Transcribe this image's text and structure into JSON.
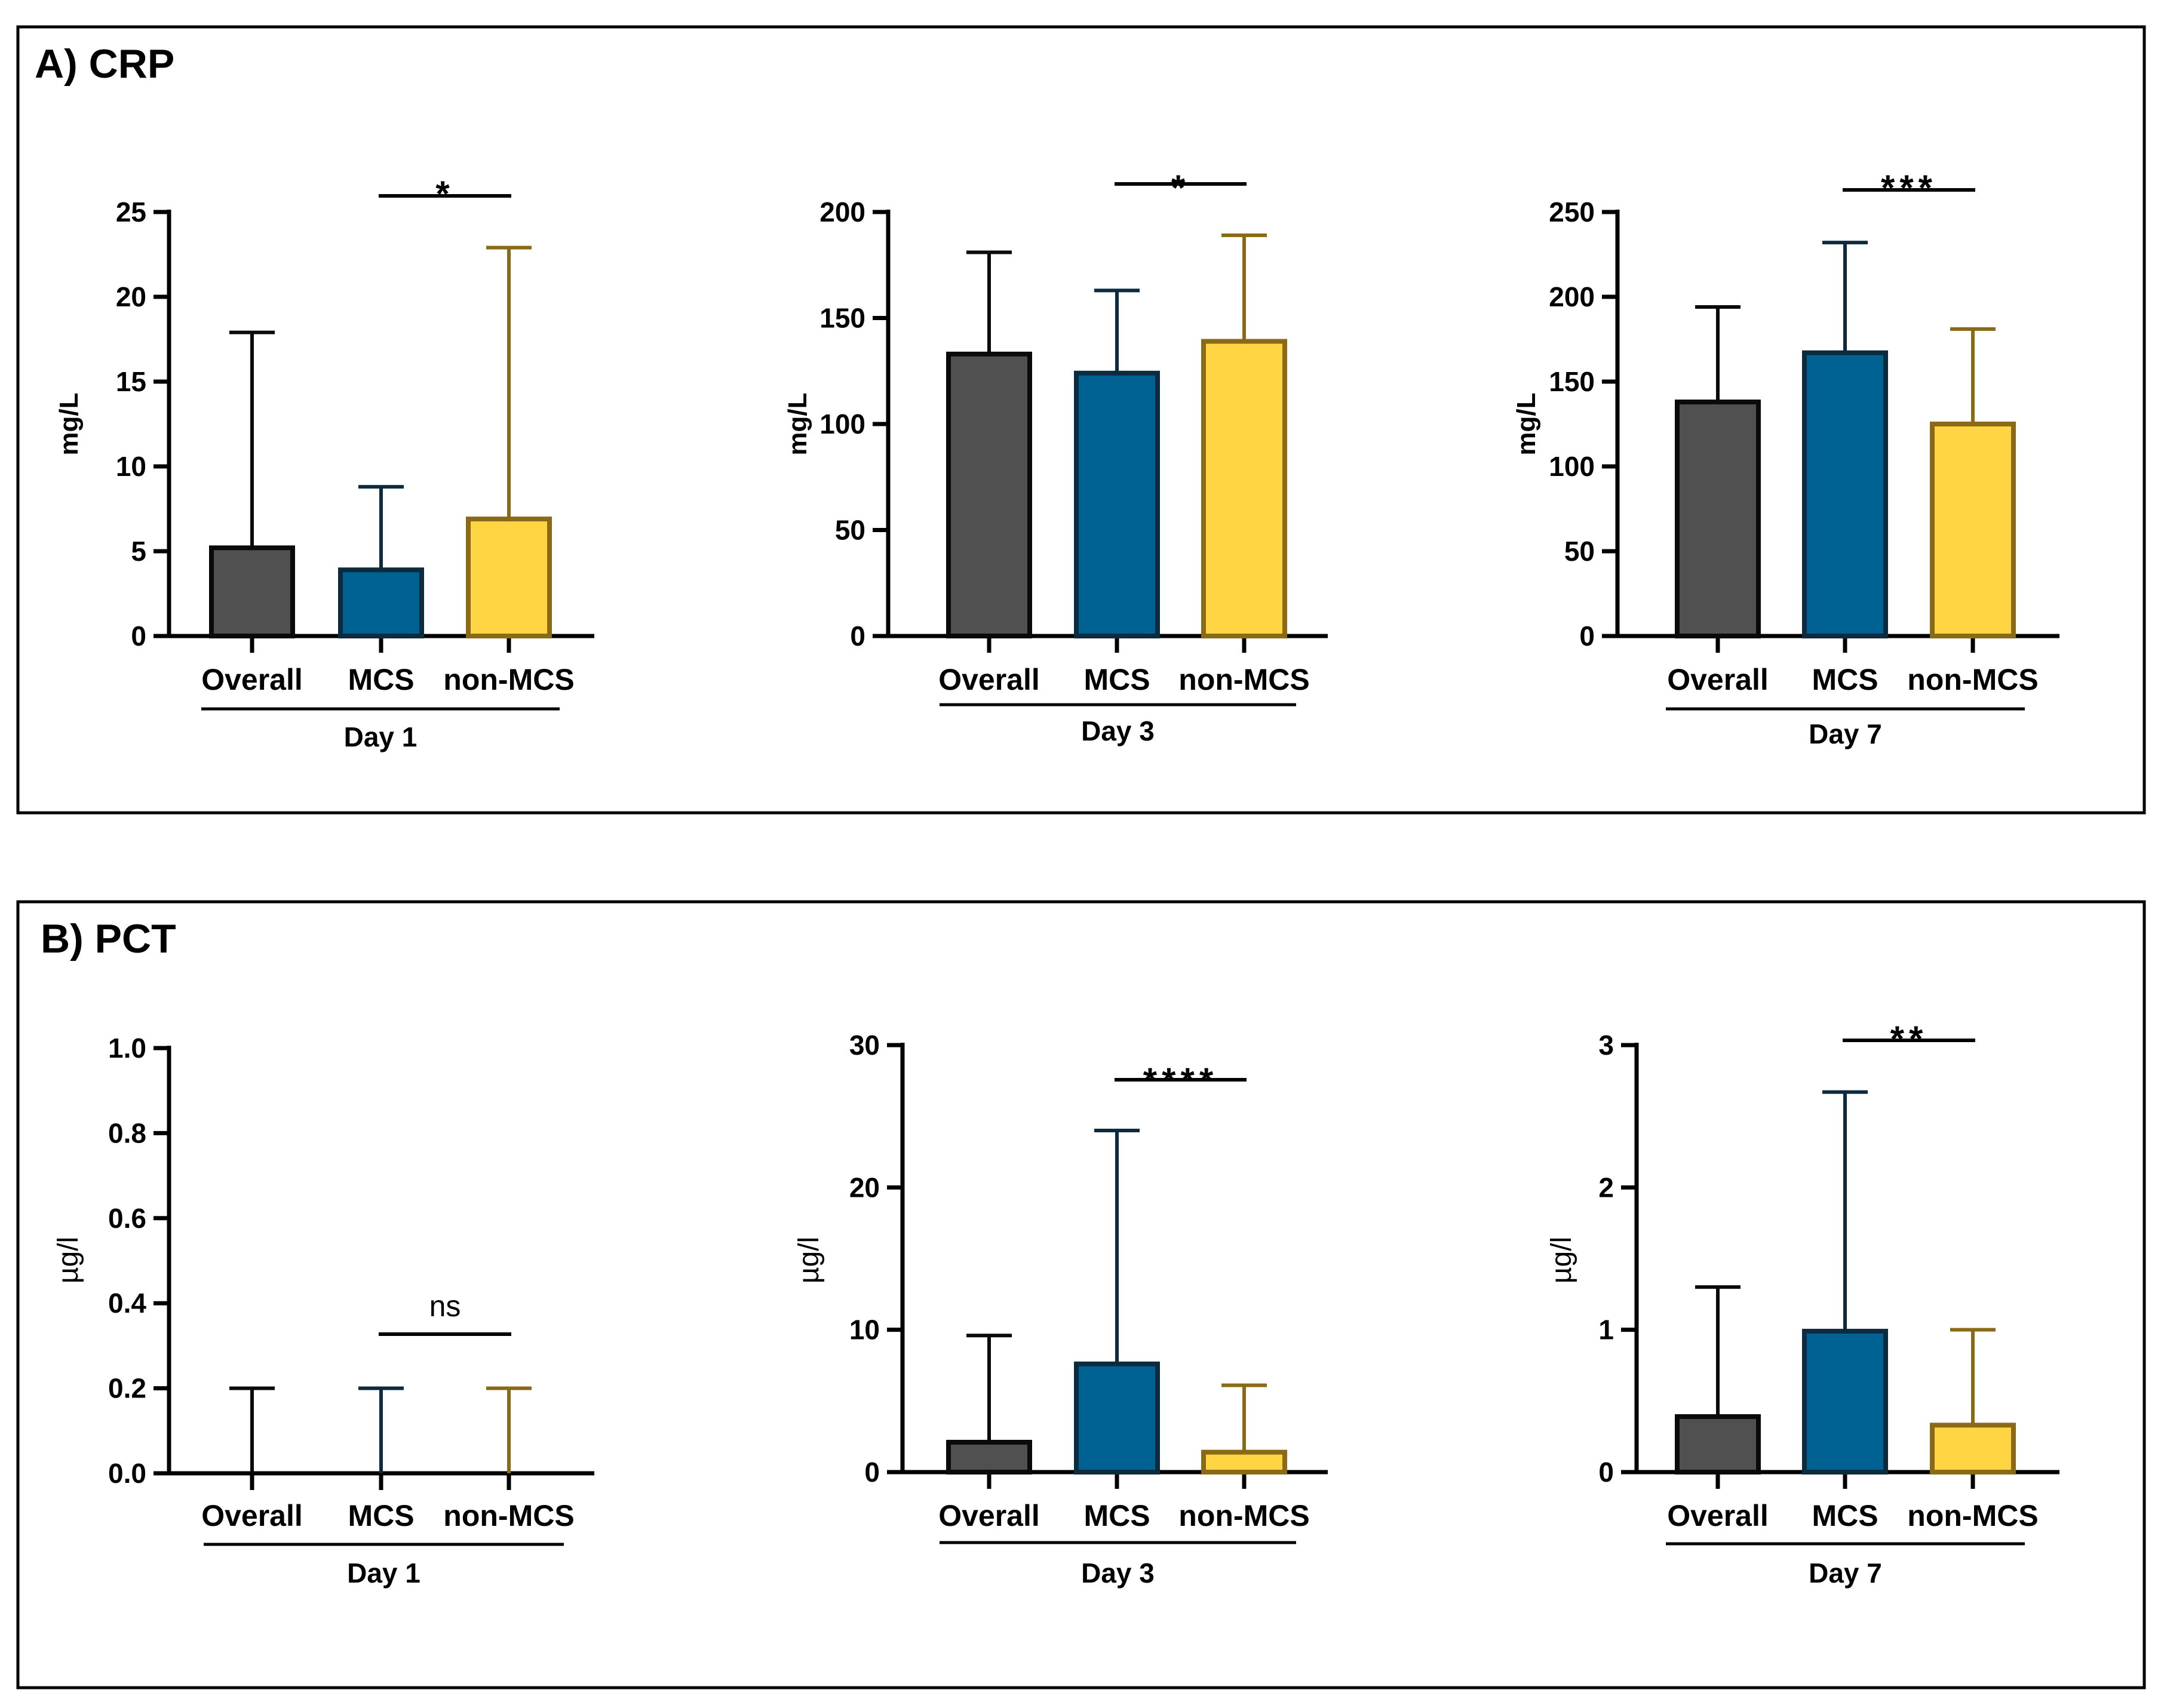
{
  "panels": [
    {
      "id": "A",
      "title": "A) CRP"
    },
    {
      "id": "B",
      "title": "B) PCT"
    }
  ],
  "colors": {
    "overall_fill": "#505050",
    "overall_stroke": "#0a0a0a",
    "mcs_fill": "#006193",
    "mcs_stroke": "#0d2b3e",
    "nonmcs_fill": "#ffd544",
    "nonmcs_stroke": "#8a6a17"
  },
  "chart_data": [
    {
      "type": "bar",
      "panel": "A",
      "ylabel": "mg/L",
      "ylim": [
        0,
        25
      ],
      "yticks": [
        0,
        5,
        10,
        15,
        20,
        25
      ],
      "categories": [
        "Overall",
        "MCS",
        "non-MCS"
      ],
      "group_label": "Day 1",
      "values": [
        5.2,
        3.9,
        6.9
      ],
      "error_upper": [
        17.9,
        8.8,
        22.9
      ],
      "significance": {
        "label": "*",
        "between": [
          "MCS",
          "non-MCS"
        ]
      }
    },
    {
      "type": "bar",
      "panel": "A",
      "ylabel": "mg/L",
      "ylim": [
        0,
        200
      ],
      "yticks": [
        0,
        50,
        100,
        150,
        200
      ],
      "categories": [
        "Overall",
        "MCS",
        "non-MCS"
      ],
      "group_label": "Day 3",
      "values": [
        133,
        124,
        139
      ],
      "error_upper": [
        181,
        163,
        189
      ],
      "significance": {
        "label": "*",
        "between": [
          "MCS",
          "non-MCS"
        ]
      }
    },
    {
      "type": "bar",
      "panel": "A",
      "ylabel": "mg/L",
      "ylim": [
        0,
        250
      ],
      "yticks": [
        0,
        50,
        100,
        150,
        200,
        250
      ],
      "categories": [
        "Overall",
        "MCS",
        "non-MCS"
      ],
      "group_label": "Day 7",
      "values": [
        138,
        167,
        125
      ],
      "error_upper": [
        194,
        232,
        181
      ],
      "significance": {
        "label": "***",
        "between": [
          "MCS",
          "non-MCS"
        ]
      }
    },
    {
      "type": "bar",
      "panel": "B",
      "ylabel": "µg/l",
      "ylim": [
        0,
        1.0
      ],
      "yticks": [
        "0.0",
        "0.2",
        "0.4",
        "0.6",
        "0.8",
        "1.0"
      ],
      "categories": [
        "Overall",
        "MCS",
        "non-MCS"
      ],
      "group_label": "Day 1",
      "values": [
        0,
        0,
        0
      ],
      "error_upper": [
        0.2,
        0.2,
        0.2
      ],
      "significance": {
        "label": "ns",
        "between": [
          "MCS",
          "non-MCS"
        ]
      }
    },
    {
      "type": "bar",
      "panel": "B",
      "ylabel": "µg/l",
      "ylim": [
        0,
        30
      ],
      "yticks": [
        0,
        10,
        20,
        30
      ],
      "categories": [
        "Overall",
        "MCS",
        "non-MCS"
      ],
      "group_label": "Day 3",
      "values": [
        2.1,
        7.6,
        1.4
      ],
      "error_upper": [
        9.6,
        24.0,
        6.1
      ],
      "significance": {
        "label": "****",
        "between": [
          "MCS",
          "non-MCS"
        ]
      }
    },
    {
      "type": "bar",
      "panel": "B",
      "ylabel": "µg/l",
      "ylim": [
        0,
        3
      ],
      "yticks": [
        0,
        1,
        2,
        3
      ],
      "categories": [
        "Overall",
        "MCS",
        "non-MCS"
      ],
      "group_label": "Day 7",
      "values": [
        0.39,
        0.99,
        0.33
      ],
      "error_upper": [
        1.3,
        2.67,
        1.0
      ],
      "significance": {
        "label": "**",
        "between": [
          "MCS",
          "non-MCS"
        ]
      }
    }
  ]
}
